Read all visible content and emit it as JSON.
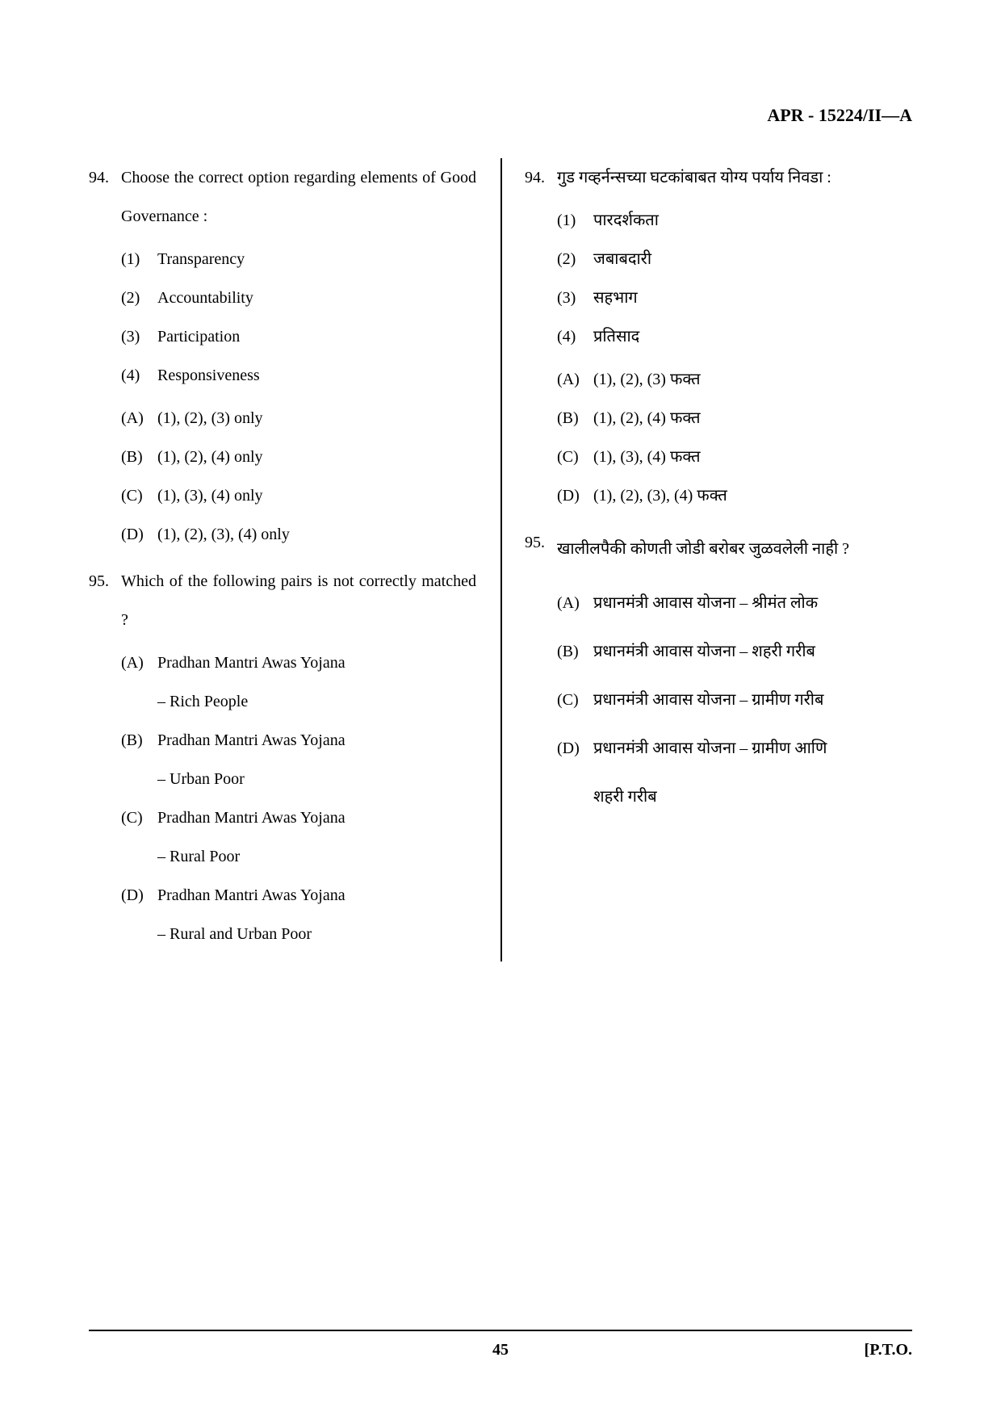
{
  "header": {
    "code": "APR - 15224/II—A"
  },
  "left": {
    "q94": {
      "num": "94.",
      "text": "Choose the correct option regarding elements of Good Governance :",
      "items": [
        {
          "label": "(1)",
          "text": "Transparency"
        },
        {
          "label": "(2)",
          "text": "Accountability"
        },
        {
          "label": "(3)",
          "text": "Participation"
        },
        {
          "label": "(4)",
          "text": "Responsiveness"
        }
      ],
      "opts": [
        {
          "label": "(A)",
          "text": "(1), (2), (3) only"
        },
        {
          "label": "(B)",
          "text": "(1), (2), (4) only"
        },
        {
          "label": "(C)",
          "text": "(1), (3), (4) only"
        },
        {
          "label": "(D)",
          "text": "(1), (2), (3), (4) only"
        }
      ]
    },
    "q95": {
      "num": "95.",
      "text": "Which of the following pairs is not correctly matched ?",
      "opts": [
        {
          "label": "(A)",
          "text": "Pradhan Mantri Awas Yojana",
          "cont": "– Rich People"
        },
        {
          "label": "(B)",
          "text": "Pradhan Mantri Awas Yojana",
          "cont": "– Urban Poor"
        },
        {
          "label": "(C)",
          "text": "Pradhan Mantri Awas Yojana",
          "cont": "– Rural Poor"
        },
        {
          "label": "(D)",
          "text": "Pradhan Mantri Awas Yojana",
          "cont": "– Rural and Urban Poor"
        }
      ]
    }
  },
  "right": {
    "q94": {
      "num": "94.",
      "text": "गुड गव्हर्नन्सच्या घटकांबाबत योग्य पर्याय निवडा :",
      "items": [
        {
          "label": "(1)",
          "text": "पारदर्शकता"
        },
        {
          "label": "(2)",
          "text": "जबाबदारी"
        },
        {
          "label": "(3)",
          "text": "सहभाग"
        },
        {
          "label": "(4)",
          "text": "प्रतिसाद"
        }
      ],
      "opts": [
        {
          "label": "(A)",
          "text": "(1), (2), (3) फक्त"
        },
        {
          "label": "(B)",
          "text": "(1), (2), (4) फक्त"
        },
        {
          "label": "(C)",
          "text": "(1), (3), (4) फक्त"
        },
        {
          "label": "(D)",
          "text": "(1), (2), (3), (4) फक्त"
        }
      ]
    },
    "q95": {
      "num": "95.",
      "text": "खालीलपैकी कोणती जोडी बरोबर जुळवलेली नाही ?",
      "opts": [
        {
          "label": "(A)",
          "text": "प्रधानमंत्री आवास योजना – श्रीमंत लोक"
        },
        {
          "label": "(B)",
          "text": "प्रधानमंत्री आवास योजना – शहरी गरीब"
        },
        {
          "label": "(C)",
          "text": "प्रधानमंत्री आवास योजना – ग्रामीण गरीब"
        },
        {
          "label": "(D)",
          "text": "प्रधानमंत्री आवास योजना – ग्रामीण आणि",
          "cont": "शहरी गरीब"
        }
      ]
    }
  },
  "footer": {
    "page": "45",
    "pto": "[P.T.O."
  }
}
